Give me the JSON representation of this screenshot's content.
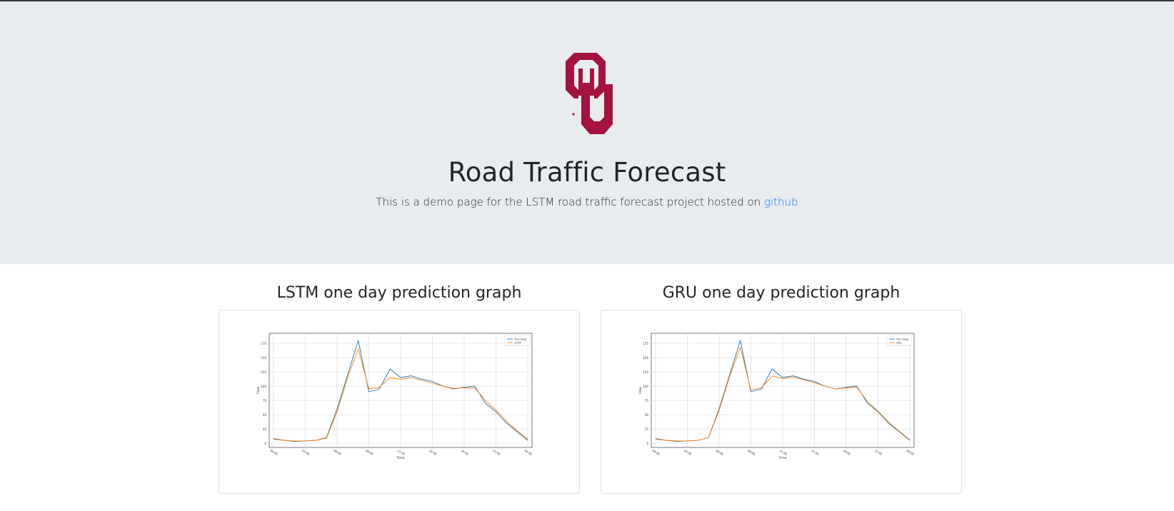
{
  "hero": {
    "title": "Road Traffic Forecast",
    "subtitle": "This is a demo page for the LSTM road traffic forecast project hosted on",
    "link_text": "github",
    "logo_letters": "OU",
    "brand_color": "#a4123f"
  },
  "charts": [
    {
      "heading": "LSTM one day prediction graph",
      "legend": [
        "True Data",
        "LSTM"
      ],
      "xlabel": "Time",
      "ylabel": "Flow",
      "xticks": [
        "00:00",
        "03:00",
        "06:00",
        "09:00",
        "12:00",
        "15:00",
        "18:00",
        "21:00",
        "00:00"
      ],
      "yticks": [
        "0",
        "25",
        "50",
        "75",
        "100",
        "125",
        "150",
        "175"
      ]
    },
    {
      "heading": "GRU one day prediction graph",
      "legend": [
        "True Data",
        "GRU"
      ],
      "xlabel": "Time",
      "ylabel": "Flow",
      "xticks": [
        "00:00",
        "03:00",
        "06:00",
        "09:00",
        "12:00",
        "15:00",
        "18:00",
        "21:00",
        "00:00"
      ],
      "yticks": [
        "0",
        "25",
        "50",
        "75",
        "100",
        "125",
        "150",
        "175"
      ]
    }
  ],
  "chart_data": [
    {
      "type": "line",
      "title": "LSTM one day prediction graph",
      "xlabel": "Time",
      "ylabel": "Flow",
      "ylim": [
        0,
        185
      ],
      "x": [
        "00:00",
        "01:00",
        "02:00",
        "03:00",
        "04:00",
        "05:00",
        "06:00",
        "07:00",
        "08:00",
        "09:00",
        "10:00",
        "11:00",
        "12:00",
        "13:00",
        "14:00",
        "15:00",
        "16:00",
        "17:00",
        "18:00",
        "19:00",
        "20:00",
        "21:00",
        "22:00",
        "23:00",
        "24:00"
      ],
      "series": [
        {
          "name": "True Data",
          "color": "#1f77b4",
          "values": [
            8,
            5,
            3,
            4,
            5,
            10,
            60,
            120,
            180,
            90,
            95,
            130,
            115,
            118,
            112,
            108,
            100,
            95,
            98,
            100,
            70,
            55,
            35,
            20,
            5
          ]
        },
        {
          "name": "LSTM",
          "color": "#ff7f0e",
          "values": [
            7,
            5,
            4,
            4,
            5,
            9,
            55,
            115,
            165,
            95,
            98,
            115,
            112,
            115,
            110,
            105,
            100,
            96,
            97,
            97,
            75,
            58,
            38,
            22,
            7
          ]
        }
      ],
      "grid": true,
      "legend_position": "top-right"
    },
    {
      "type": "line",
      "title": "GRU one day prediction graph",
      "xlabel": "Time",
      "ylabel": "Flow",
      "ylim": [
        0,
        185
      ],
      "x": [
        "00:00",
        "01:00",
        "02:00",
        "03:00",
        "04:00",
        "05:00",
        "06:00",
        "07:00",
        "08:00",
        "09:00",
        "10:00",
        "11:00",
        "12:00",
        "13:00",
        "14:00",
        "15:00",
        "16:00",
        "17:00",
        "18:00",
        "19:00",
        "20:00",
        "21:00",
        "22:00",
        "23:00",
        "24:00"
      ],
      "series": [
        {
          "name": "True Data",
          "color": "#1f77b4",
          "values": [
            8,
            5,
            3,
            4,
            5,
            10,
            60,
            120,
            180,
            90,
            95,
            130,
            115,
            118,
            112,
            108,
            100,
            95,
            98,
            100,
            70,
            55,
            35,
            20,
            5
          ]
        },
        {
          "name": "GRU",
          "color": "#ff7f0e",
          "values": [
            7,
            5,
            4,
            4,
            5,
            10,
            57,
            117,
            168,
            93,
            97,
            118,
            113,
            116,
            111,
            106,
            100,
            95,
            97,
            98,
            73,
            56,
            37,
            21,
            6
          ]
        }
      ],
      "grid": true,
      "legend_position": "top-right"
    }
  ]
}
